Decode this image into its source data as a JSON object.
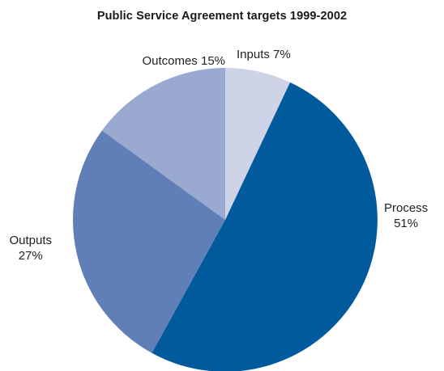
{
  "chart_data": {
    "type": "pie",
    "title": "Public Service Agreement targets 1999-2002",
    "slices": [
      {
        "name": "Inputs",
        "value": 7,
        "label": "Inputs 7%",
        "color": "#ced3e8"
      },
      {
        "name": "Process",
        "value": 51,
        "label_lines": [
          "Process",
          "51%"
        ],
        "color": "#005a9c"
      },
      {
        "name": "Outputs",
        "value": 27,
        "label_lines": [
          "Outputs",
          "27%"
        ],
        "color": "#5f7fb6"
      },
      {
        "name": "Outcomes",
        "value": 15,
        "label": "Outcomes 15%",
        "color": "#9aa9d0"
      }
    ],
    "start": "12 o'clock",
    "direction": "clockwise"
  }
}
